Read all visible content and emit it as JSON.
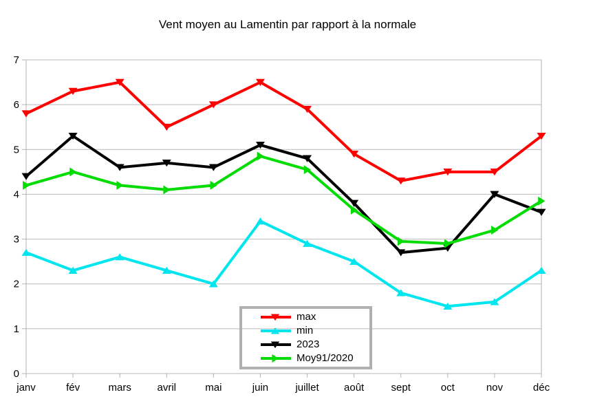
{
  "title": "Vent moyen au Lamentin par rapport à la normale",
  "chart_data": {
    "type": "line",
    "title": "Vent moyen au Lamentin par rapport à la normale",
    "categories": [
      "janv",
      "fév",
      "mars",
      "avril",
      "mai",
      "juin",
      "juillet",
      "août",
      "sept",
      "oct",
      "nov",
      "déc"
    ],
    "series": [
      {
        "name": "max",
        "color": "#ff0000",
        "marker": "triangle-down",
        "values": [
          5.8,
          6.3,
          6.5,
          5.5,
          6.0,
          6.5,
          5.9,
          4.9,
          4.3,
          4.5,
          4.5,
          5.3
        ]
      },
      {
        "name": "min",
        "color": "#00e6ee",
        "marker": "triangle-up",
        "values": [
          2.7,
          2.3,
          2.6,
          2.3,
          2.0,
          3.4,
          2.9,
          2.5,
          1.8,
          1.5,
          1.6,
          2.3
        ]
      },
      {
        "name": "2023",
        "color": "#000000",
        "marker": "triangle-down",
        "values": [
          4.4,
          5.3,
          4.6,
          4.7,
          4.6,
          5.1,
          4.8,
          3.8,
          2.7,
          2.8,
          4.0,
          3.6
        ]
      },
      {
        "name": "Moy91/2020",
        "color": "#00dc00",
        "marker": "triangle-right",
        "values": [
          4.2,
          4.5,
          4.2,
          4.1,
          4.2,
          4.85,
          4.55,
          3.65,
          2.95,
          2.9,
          3.2,
          3.85
        ]
      }
    ],
    "xlabel": "",
    "ylabel": "",
    "ylim": [
      0,
      7
    ],
    "yticks": [
      0,
      1,
      2,
      3,
      4,
      5,
      6,
      7
    ],
    "grid": true,
    "legend_position": "inside-bottom-center"
  },
  "colors": {
    "background": "#ffffff",
    "gridline": "#b9b9b9",
    "axis": "#b3b3b3",
    "legend_border": "#b0b0b0",
    "text": "#000000"
  }
}
